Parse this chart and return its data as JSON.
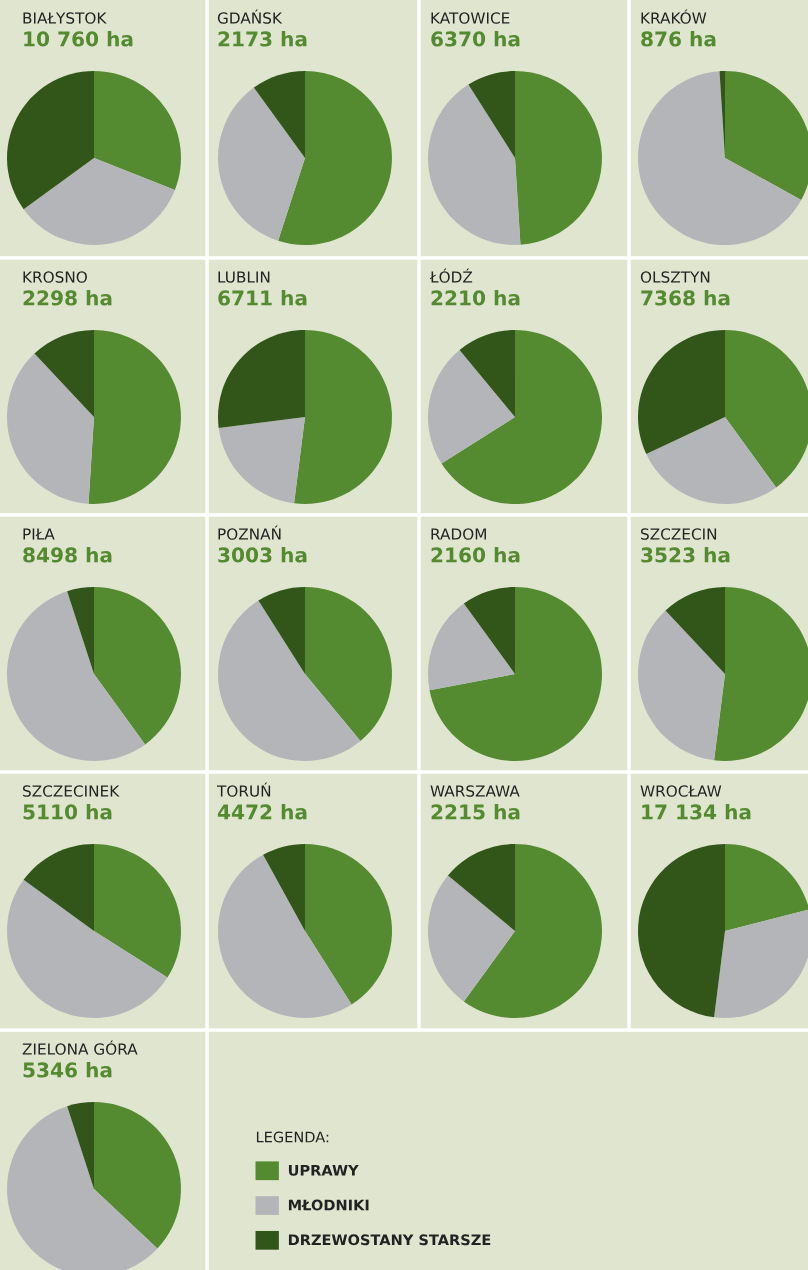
{
  "chart_data": [
    {
      "type": "pie",
      "title": "BIAŁYSTOK",
      "subtitle": "10 760 ha",
      "values": [
        31,
        34,
        35
      ],
      "colors": [
        "#548a30",
        "#b4b5b9",
        "#32561a"
      ]
    },
    {
      "type": "pie",
      "title": "GDAŃSK",
      "subtitle": "2173 ha",
      "values": [
        55,
        35,
        10
      ],
      "colors": [
        "#548a30",
        "#b4b5b9",
        "#32561a"
      ]
    },
    {
      "type": "pie",
      "title": "KATOWICE",
      "subtitle": "6370 ha",
      "values": [
        49,
        42,
        9
      ],
      "colors": [
        "#548a30",
        "#b4b5b9",
        "#32561a"
      ]
    },
    {
      "type": "pie",
      "title": "KRAKÓW",
      "subtitle": "876 ha",
      "values": [
        33,
        66,
        1
      ],
      "colors": [
        "#548a30",
        "#b4b5b9",
        "#32561a"
      ]
    },
    {
      "type": "pie",
      "title": "KROSNO",
      "subtitle": "2298 ha",
      "values": [
        51,
        37,
        12
      ],
      "colors": [
        "#548a30",
        "#b4b5b9",
        "#32561a"
      ]
    },
    {
      "type": "pie",
      "title": "LUBLIN",
      "subtitle": "6711 ha",
      "values": [
        52,
        21,
        27
      ],
      "colors": [
        "#548a30",
        "#b4b5b9",
        "#32561a"
      ]
    },
    {
      "type": "pie",
      "title": "ŁÓDŹ",
      "subtitle": "2210 ha",
      "values": [
        66,
        23,
        11
      ],
      "colors": [
        "#548a30",
        "#b4b5b9",
        "#32561a"
      ]
    },
    {
      "type": "pie",
      "title": "OLSZTYN",
      "subtitle": "7368 ha",
      "values": [
        40,
        28,
        32
      ],
      "colors": [
        "#548a30",
        "#b4b5b9",
        "#32561a"
      ]
    },
    {
      "type": "pie",
      "title": "PIŁA",
      "subtitle": "8498 ha",
      "values": [
        40,
        55,
        5
      ],
      "colors": [
        "#548a30",
        "#b4b5b9",
        "#32561a"
      ]
    },
    {
      "type": "pie",
      "title": "POZNAŃ",
      "subtitle": "3003 ha",
      "values": [
        39,
        52,
        9
      ],
      "colors": [
        "#548a30",
        "#b4b5b9",
        "#32561a"
      ]
    },
    {
      "type": "pie",
      "title": "RADOM",
      "subtitle": "2160 ha",
      "values": [
        72,
        18,
        10
      ],
      "colors": [
        "#548a30",
        "#b4b5b9",
        "#32561a"
      ]
    },
    {
      "type": "pie",
      "title": "SZCZECIN",
      "subtitle": "3523 ha",
      "values": [
        52,
        36,
        12
      ],
      "colors": [
        "#548a30",
        "#b4b5b9",
        "#32561a"
      ]
    },
    {
      "type": "pie",
      "title": "SZCZECINEK",
      "subtitle": "5110 ha",
      "values": [
        34,
        51,
        15
      ],
      "colors": [
        "#548a30",
        "#b4b5b9",
        "#32561a"
      ]
    },
    {
      "type": "pie",
      "title": "TORUŃ",
      "subtitle": "4472 ha",
      "values": [
        41,
        51,
        8
      ],
      "colors": [
        "#548a30",
        "#b4b5b9",
        "#32561a"
      ]
    },
    {
      "type": "pie",
      "title": "WARSZAWA",
      "subtitle": "2215 ha",
      "values": [
        60,
        26,
        14
      ],
      "colors": [
        "#548a30",
        "#b4b5b9",
        "#32561a"
      ]
    },
    {
      "type": "pie",
      "title": "WROCŁAW",
      "subtitle": "17 134 ha",
      "values": [
        21,
        31,
        48
      ],
      "colors": [
        "#548a30",
        "#b4b5b9",
        "#32561a"
      ]
    },
    {
      "type": "pie",
      "title": "ZIELONA GÓRA",
      "subtitle": "5346 ha",
      "categories": [
        "UPRAWY",
        "MŁODNIKI",
        "DRZEWOSTANY STARSZE"
      ],
      "values": [
        37,
        58,
        5
      ],
      "colors": [
        "#548a30",
        "#b4b5b9",
        "#32561a"
      ],
      "legend": "right",
      "legend_title": "LEGENDA:"
    }
  ]
}
